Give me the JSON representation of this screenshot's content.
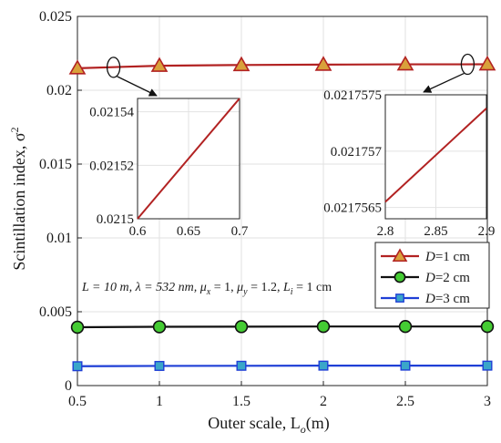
{
  "chart_data": {
    "type": "line",
    "x": [
      0.5,
      1,
      1.5,
      2,
      2.5,
      3
    ],
    "xlabel": "Outer scale, L",
    "xlabel_sub": "o",
    "xlabel_unit": "(m)",
    "ylabel": "Scintillation index, σ",
    "ylabel_sup": "2",
    "xlim": [
      0.5,
      3
    ],
    "ylim": [
      0,
      0.025
    ],
    "xticks": [
      "0.5",
      "1",
      "1.5",
      "2",
      "2.5",
      "3"
    ],
    "yticks": [
      "0",
      "0.005",
      "0.01",
      "0.015",
      "0.02",
      "0.025"
    ],
    "grid": true,
    "legend_position": "right",
    "series": [
      {
        "name_var": "D",
        "name_rest": "=1 cm",
        "marker": "triangle",
        "color": "#b22222",
        "fill": "#d9a13b",
        "values": [
          0.02149,
          0.02166,
          0.02171,
          0.021735,
          0.021755,
          0.021757
        ]
      },
      {
        "name_var": "D",
        "name_rest": "=2 cm",
        "marker": "circle",
        "color": "#111111",
        "fill": "#44cc33",
        "values": [
          0.00395,
          0.00398,
          0.00399,
          0.004,
          0.004,
          0.004
        ]
      },
      {
        "name_var": "D",
        "name_rest": "=3 cm",
        "marker": "square",
        "color": "#1f3fd6",
        "fill": "#3aa6c9",
        "values": [
          0.00131,
          0.00133,
          0.00134,
          0.00135,
          0.00135,
          0.00135
        ]
      }
    ],
    "annotation": {
      "L": "L = 10 m, ",
      "lambda": "λ = 532 nm, ",
      "mux": "μ",
      "mux_sub": "x",
      "mux_val": " = 1, ",
      "muy": "μ",
      "muy_sub": "y",
      "muy_val": " = 1.2, ",
      "li": "L",
      "li_sub": "i",
      "li_val": " = 1 cm"
    },
    "insets": [
      {
        "xlim": [
          0.6,
          0.7
        ],
        "ylim": [
          0.0215,
          0.021545
        ],
        "xticks": [
          "0.6",
          "0.65",
          "0.7"
        ],
        "xtick_values": [
          0.6,
          0.65,
          0.7
        ],
        "yticks": [
          "0.0215",
          "0.02152",
          "0.02154"
        ],
        "ytick_values": [
          0.0215,
          0.02152,
          0.02154
        ],
        "line": [
          [
            0.6,
            0.0215
          ],
          [
            0.7,
            0.021545
          ]
        ]
      },
      {
        "xlim": [
          2.8,
          2.9
        ],
        "ylim": [
          0.0217564,
          0.0217575
        ],
        "xticks": [
          "2.8",
          "2.85",
          "2.9"
        ],
        "xtick_values": [
          2.8,
          2.85,
          2.9
        ],
        "yticks": [
          "0.0217565",
          "0.021757",
          "0.0217575"
        ],
        "ytick_values": [
          0.0217565,
          0.021757,
          0.0217575
        ],
        "line": [
          [
            2.8,
            0.02175655
          ],
          [
            2.9,
            0.02175738
          ]
        ]
      }
    ]
  }
}
